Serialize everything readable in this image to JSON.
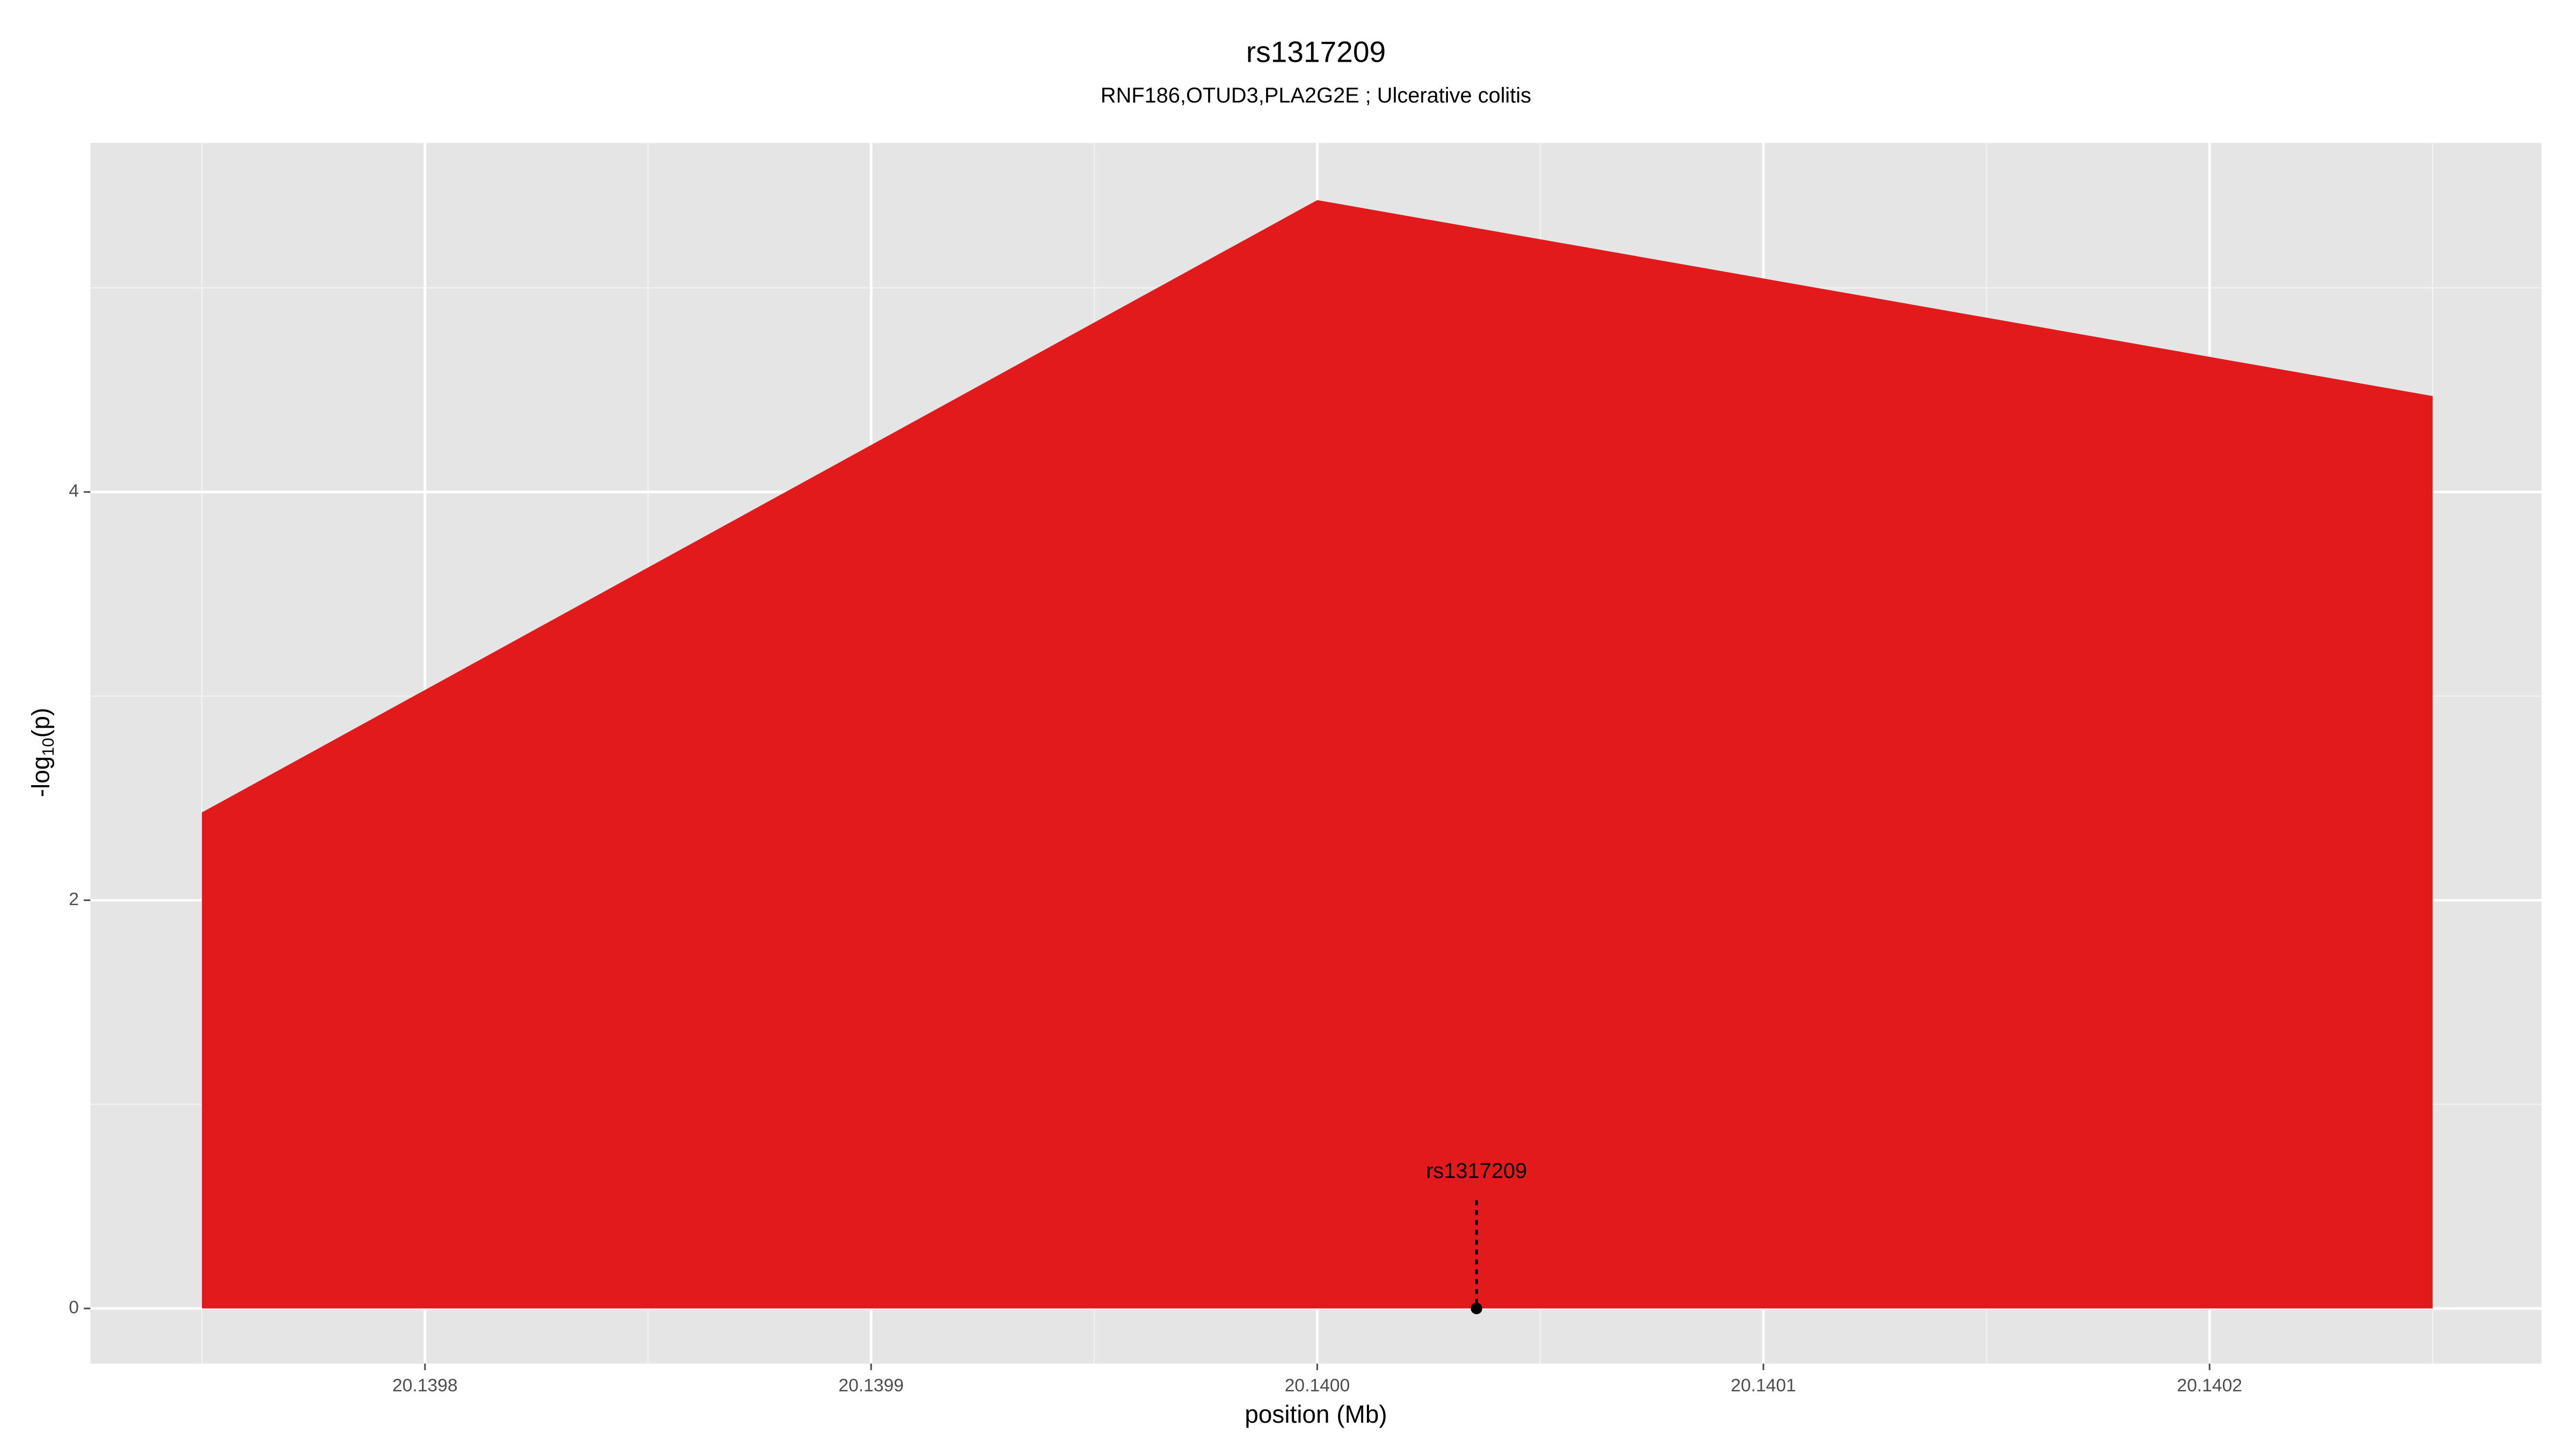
{
  "chart_data": {
    "type": "area",
    "title": "rs1317209",
    "subtitle": "RNF186,OTUD3,PLA2G2E ; Ulcerative colitis",
    "xlabel": "position (Mb)",
    "ylabel": [
      "-log",
      "10",
      "(p)"
    ],
    "x": [
      20.13975,
      20.14,
      20.14025
    ],
    "values": [
      2.43,
      5.43,
      4.47
    ],
    "color": "#e31a1c",
    "xlim": [
      20.139725,
      20.1402744
    ],
    "ylim": [
      -0.27,
      5.71
    ],
    "xticks": [
      {
        "value": 20.1398,
        "label": "20.1398"
      },
      {
        "value": 20.1399,
        "label": "20.1399"
      },
      {
        "value": 20.14,
        "label": "20.1400"
      },
      {
        "value": 20.1401,
        "label": "20.1401"
      },
      {
        "value": 20.1402,
        "label": "20.1402"
      }
    ],
    "yticks": [
      0,
      2,
      4
    ],
    "minor_xticks": [
      20.13975,
      20.13985,
      20.13995,
      20.14005,
      20.14015,
      20.14025
    ],
    "minor_yticks": [
      1,
      3,
      5
    ],
    "grid": true,
    "annotations": [
      {
        "text": "rs1317209",
        "x": 20.1400357,
        "y": 0,
        "line_top": 0.53
      }
    ]
  }
}
